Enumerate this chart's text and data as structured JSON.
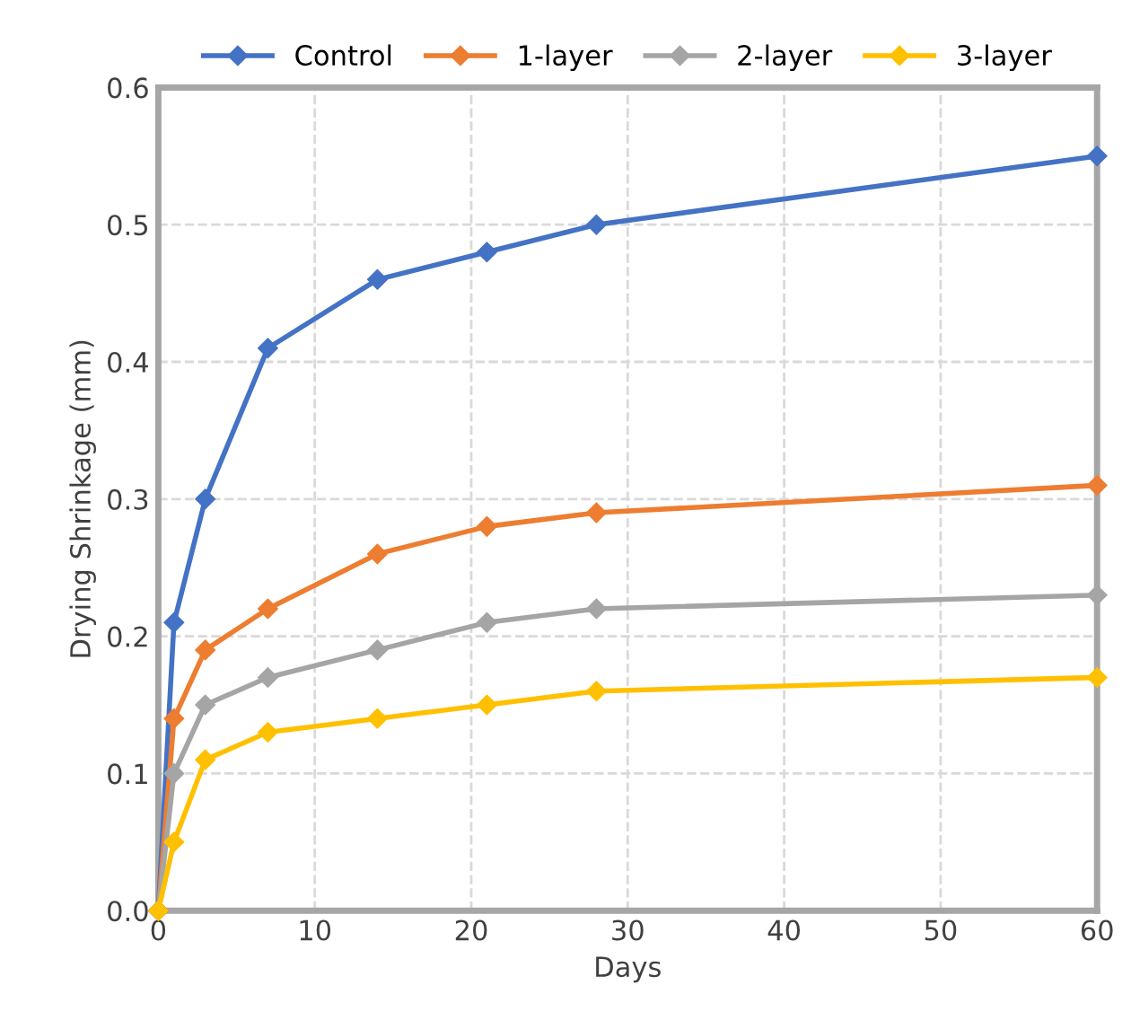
{
  "chart_data": {
    "type": "line",
    "xlabel": "Days",
    "ylabel": "Drying Shrinkage (mm)",
    "x": [
      0,
      1,
      3,
      7,
      14,
      21,
      28,
      60
    ],
    "series": [
      {
        "name": "Control",
        "color": "#4472c4",
        "values": [
          0,
          0.21,
          0.3,
          0.41,
          0.46,
          0.48,
          0.5,
          0.55
        ]
      },
      {
        "name": "1-layer",
        "color": "#ed7d31",
        "values": [
          0,
          0.14,
          0.19,
          0.22,
          0.26,
          0.28,
          0.29,
          0.31
        ]
      },
      {
        "name": "2-layer",
        "color": "#a5a5a5",
        "values": [
          0,
          0.1,
          0.15,
          0.17,
          0.19,
          0.21,
          0.22,
          0.23
        ]
      },
      {
        "name": "3-layer",
        "color": "#ffc000",
        "values": [
          0,
          0.05,
          0.11,
          0.13,
          0.14,
          0.15,
          0.16,
          0.17
        ]
      }
    ],
    "xlim": [
      0,
      60
    ],
    "xticks": [
      0,
      10,
      20,
      30,
      40,
      50,
      60
    ],
    "ylim": [
      0,
      0.6
    ],
    "yticks": [
      {
        "value": 0,
        "label": "0.0"
      },
      0.1,
      0.2,
      0.3,
      0.4,
      0.5,
      0.6
    ],
    "grid": true,
    "legend": "top",
    "marker": "diamond",
    "line_style": "solid"
  }
}
